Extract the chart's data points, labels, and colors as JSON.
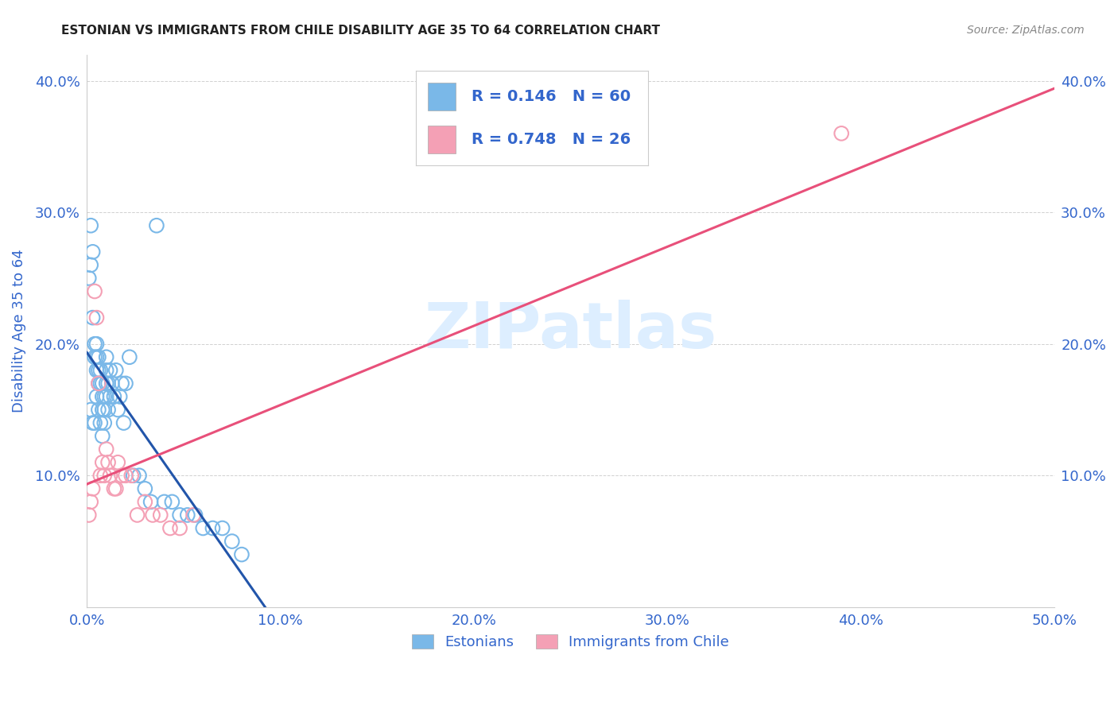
{
  "title": "ESTONIAN VS IMMIGRANTS FROM CHILE DISABILITY AGE 35 TO 64 CORRELATION CHART",
  "source": "Source: ZipAtlas.com",
  "ylabel": "Disability Age 35 to 64",
  "xlim": [
    0.0,
    0.5
  ],
  "ylim": [
    0.0,
    0.42
  ],
  "xtick_vals": [
    0.0,
    0.1,
    0.2,
    0.3,
    0.4,
    0.5
  ],
  "xtick_labels": [
    "0.0%",
    "10.0%",
    "20.0%",
    "30.0%",
    "40.0%",
    "50.0%"
  ],
  "ytick_vals": [
    0.1,
    0.2,
    0.3,
    0.4
  ],
  "ytick_labels": [
    "10.0%",
    "20.0%",
    "30.0%",
    "40.0%"
  ],
  "r_estonian": 0.146,
  "n_estonian": 60,
  "r_chile": 0.748,
  "n_chile": 26,
  "color_estonian": "#7ab8e8",
  "color_chile": "#f4a0b5",
  "line_color_estonian": "#2255aa",
  "line_color_chile": "#e8507a",
  "dash_color": "#aaccee",
  "watermark": "ZIPatlas",
  "watermark_color": "#ddeeff",
  "title_fontsize": 11,
  "source_fontsize": 10,
  "axis_label_color": "#3366cc",
  "tick_label_color": "#3366cc",
  "legend_labels": [
    "Estonians",
    "Immigrants from Chile"
  ],
  "background_color": "#ffffff",
  "grid_color": "#cccccc",
  "estonian_x": [
    0.001,
    0.002,
    0.002,
    0.002,
    0.003,
    0.003,
    0.003,
    0.004,
    0.004,
    0.004,
    0.005,
    0.005,
    0.005,
    0.005,
    0.006,
    0.006,
    0.006,
    0.006,
    0.007,
    0.007,
    0.007,
    0.008,
    0.008,
    0.008,
    0.008,
    0.009,
    0.009,
    0.009,
    0.01,
    0.01,
    0.01,
    0.01,
    0.011,
    0.011,
    0.012,
    0.012,
    0.013,
    0.014,
    0.015,
    0.016,
    0.017,
    0.018,
    0.019,
    0.02,
    0.022,
    0.024,
    0.027,
    0.03,
    0.033,
    0.036,
    0.04,
    0.044,
    0.048,
    0.052,
    0.056,
    0.06,
    0.065,
    0.07,
    0.075,
    0.08
  ],
  "estonian_y": [
    0.25,
    0.29,
    0.26,
    0.15,
    0.27,
    0.22,
    0.14,
    0.2,
    0.19,
    0.14,
    0.2,
    0.19,
    0.18,
    0.16,
    0.19,
    0.18,
    0.17,
    0.15,
    0.18,
    0.17,
    0.14,
    0.17,
    0.16,
    0.15,
    0.13,
    0.16,
    0.15,
    0.14,
    0.19,
    0.18,
    0.17,
    0.16,
    0.17,
    0.15,
    0.18,
    0.16,
    0.17,
    0.16,
    0.18,
    0.15,
    0.16,
    0.17,
    0.14,
    0.17,
    0.19,
    0.1,
    0.1,
    0.09,
    0.08,
    0.29,
    0.08,
    0.08,
    0.07,
    0.07,
    0.07,
    0.06,
    0.06,
    0.06,
    0.05,
    0.04
  ],
  "chile_x": [
    0.001,
    0.002,
    0.003,
    0.004,
    0.005,
    0.006,
    0.007,
    0.008,
    0.009,
    0.01,
    0.011,
    0.012,
    0.014,
    0.016,
    0.018,
    0.02,
    0.023,
    0.026,
    0.03,
    0.034,
    0.038,
    0.043,
    0.048,
    0.055,
    0.39,
    0.015
  ],
  "chile_y": [
    0.07,
    0.08,
    0.09,
    0.24,
    0.22,
    0.17,
    0.1,
    0.11,
    0.1,
    0.12,
    0.11,
    0.1,
    0.09,
    0.11,
    0.1,
    0.1,
    0.1,
    0.07,
    0.08,
    0.07,
    0.07,
    0.06,
    0.06,
    0.07,
    0.36,
    0.09
  ]
}
